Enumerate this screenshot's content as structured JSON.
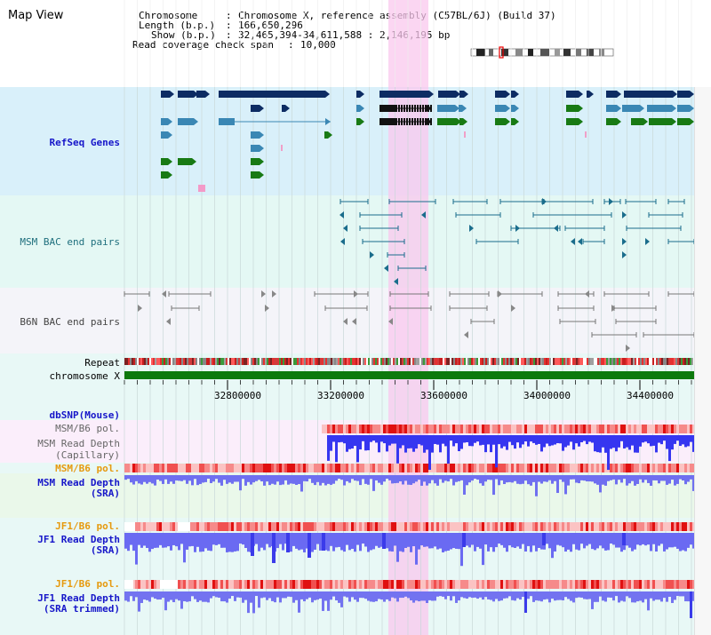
{
  "header": {
    "title": "Map View",
    "info": [
      {
        "label": "Chromosome",
        "value": "Chromosome X, reference assembly (C57BL/6J) (Build 37)"
      },
      {
        "label": "Length (b.p.)",
        "value": "166,650,296"
      },
      {
        "label": "Show (b.p.)",
        "value": "32,465,394-34,611,588 : 2,146,195 bp"
      },
      {
        "label": "Read coverage check span",
        "value": "10,000"
      }
    ]
  },
  "tracks": {
    "refseq": "RefSeq Genes",
    "msm_bac": "MSM BAC end pairs",
    "b6n_bac": "B6N BAC end pairs",
    "repeat": "Repeat",
    "chromosome": "chromosome X",
    "dbsnp": "dbSNP(Mouse)",
    "msm_b6_pol_1": "MSM/B6 pol.",
    "msm_depth_cap_1": "MSM Read Depth",
    "msm_depth_cap_2": "(Capillary)",
    "msm_b6_pol_2": "MSM/B6 pol.",
    "msm_depth_sra_1": "MSM Read Depth",
    "msm_depth_sra_2": "(SRA)",
    "jf1_b6_pol_1": "JF1/B6 pol.",
    "jf1_depth_sra_1": "JF1 Read Depth",
    "jf1_depth_sra_2": "(SRA)",
    "jf1_b6_pol_2": "JF1/B6 pol.",
    "jf1_depth_trim_1": "JF1 Read Depth",
    "jf1_depth_trim_2": "(SRA trimmed)"
  },
  "axis": {
    "ticks": [
      "32800000",
      "33200000",
      "33600000",
      "34000000",
      "34400000"
    ]
  },
  "colors": {
    "refseq_bg": "#d9f0fa",
    "highlight": "#f9d6f0",
    "gene_dark": "#0d2c63",
    "gene_mid": "#3a87b4",
    "gene_green": "#187a14",
    "msm_line": "#1a6d8c",
    "b6n_line": "#777777",
    "polymorph": "#ee3333",
    "depth_blue": "#3636f0",
    "chrom_green": "#0d7a0d",
    "label_blue": "#1616c9",
    "label_orange": "#e69a0f",
    "label_teal": "#1e6f7d"
  }
}
